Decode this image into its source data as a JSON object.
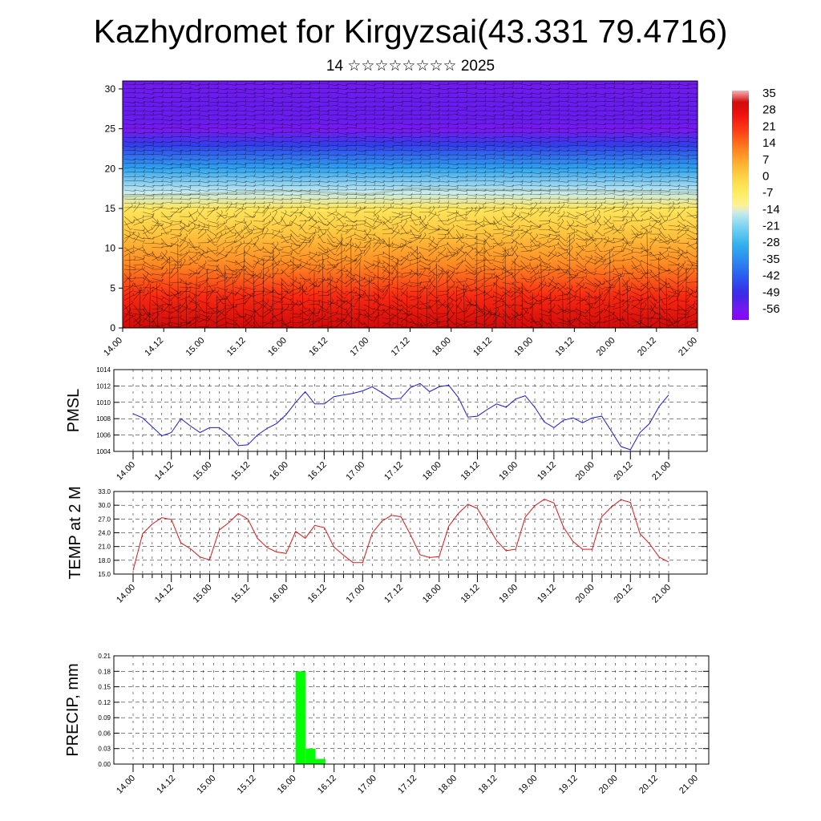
{
  "title": "Kazhydromet for Kirgyzsai(43.331 79.4716)",
  "subtitle": "14 ☆☆☆☆☆☆☆☆ 2025",
  "x_tick_labels": [
    "14.00",
    "14.12",
    "15.00",
    "15.12",
    "16.00",
    "16.12",
    "17.00",
    "17.12",
    "18.00",
    "18.12",
    "19.00",
    "19.12",
    "20.00",
    "20.12",
    "21.00"
  ],
  "colorbar_labels": [
    "35",
    "28",
    "21",
    "14",
    "7",
    "0",
    "-7",
    "-14",
    "-21",
    "-28",
    "-35",
    "-42",
    "-49",
    "-56"
  ],
  "chart_data": [
    {
      "type": "heatmap",
      "title": "",
      "ylabel": "",
      "yticks": [
        "0",
        "5",
        "10",
        "15",
        "20",
        "25",
        "30"
      ],
      "ylim": [
        0,
        31
      ],
      "colorbar": {
        "min": -60,
        "max": 38,
        "step": 7
      },
      "vertical_profile": [
        {
          "level": 0,
          "value": 33
        },
        {
          "level": 4,
          "value": 24
        },
        {
          "level": 8,
          "value": 12
        },
        {
          "level": 12,
          "value": 3
        },
        {
          "level": 15,
          "value": -4
        },
        {
          "level": 17,
          "value": -14
        },
        {
          "level": 20,
          "value": -30
        },
        {
          "level": 23,
          "value": -46
        },
        {
          "level": 25,
          "value": -56
        },
        {
          "level": 26,
          "value": -54
        },
        {
          "level": 28,
          "value": -54
        },
        {
          "level": 31,
          "value": -55
        }
      ],
      "freezing_level_by_time": [
        {
          "time": "14.00",
          "level": 16.5
        },
        {
          "time": "16.00",
          "level": 17.2
        },
        {
          "time": "17.00",
          "level": 16.8
        },
        {
          "time": "17.12",
          "level": 17.5
        },
        {
          "time": "18.00",
          "level": 17.4
        },
        {
          "time": "21.00",
          "level": 17.0
        }
      ],
      "overlay": "wind barbs"
    },
    {
      "type": "line",
      "ylabel": "PMSL",
      "ylim": [
        1004,
        1014
      ],
      "yticks": [
        "1004",
        "1006",
        "1008",
        "1010",
        "1012",
        "1014"
      ],
      "series": [
        {
          "color": "#1a1adc",
          "values": [
            1008.6,
            1008.1,
            1007.0,
            1005.9,
            1006.3,
            1008.0,
            1007.1,
            1006.3,
            1006.9,
            1006.9,
            1006.0,
            1004.7,
            1004.8,
            1006.0,
            1006.8,
            1007.4,
            1008.5,
            1010.0,
            1011.3,
            1009.8,
            1009.8,
            1010.7,
            1010.9,
            1011.1,
            1011.4,
            1011.9,
            1011.2,
            1010.4,
            1010.5,
            1011.8,
            1012.3,
            1011.3,
            1011.9,
            1012.1,
            1010.6,
            1008.2,
            1008.3,
            1009.1,
            1009.8,
            1009.4,
            1010.4,
            1010.8,
            1009.4,
            1007.6,
            1006.9,
            1007.8,
            1008.1,
            1007.5,
            1008.1,
            1008.3,
            1006.5,
            1004.6,
            1004.2,
            1006.3,
            1007.4,
            1009.5,
            1010.9
          ]
        }
      ]
    },
    {
      "type": "line",
      "ylabel": "TEMP at 2 M",
      "ylim": [
        15.0,
        33.0
      ],
      "yticks": [
        "15.0",
        "18.0",
        "21.0",
        "24.0",
        "27.0",
        "30.0",
        "33.0"
      ],
      "series": [
        {
          "color": "#e01414",
          "values": [
            15.8,
            23.8,
            25.9,
            27.3,
            26.9,
            21.8,
            20.5,
            18.7,
            18.1,
            24.6,
            26.2,
            28.2,
            27.0,
            22.8,
            20.8,
            19.8,
            19.5,
            24.3,
            22.8,
            25.6,
            25.1,
            20.9,
            19.1,
            17.5,
            17.5,
            23.9,
            26.5,
            27.8,
            27.5,
            23.6,
            19.2,
            18.6,
            18.8,
            25.4,
            28.2,
            30.2,
            29.3,
            25.8,
            22.3,
            20.1,
            20.4,
            27.4,
            29.9,
            31.3,
            30.5,
            25.2,
            22.1,
            20.4,
            20.4,
            27.5,
            29.6,
            31.2,
            30.6,
            23.8,
            21.6,
            18.7,
            17.6
          ]
        }
      ]
    },
    {
      "type": "bar",
      "ylabel": "PRECIP, mm",
      "ylim": [
        0,
        0.21
      ],
      "yticks": [
        "0.00",
        "0.03",
        "0.06",
        "0.09",
        "0.12",
        "0.15",
        "0.18",
        "0.21"
      ],
      "color": "#00ff00",
      "bars": [
        {
          "time": "16.03",
          "value": 0.18
        },
        {
          "time": "16.06",
          "value": 0.03
        },
        {
          "time": "16.09",
          "value": 0.01
        }
      ]
    }
  ]
}
